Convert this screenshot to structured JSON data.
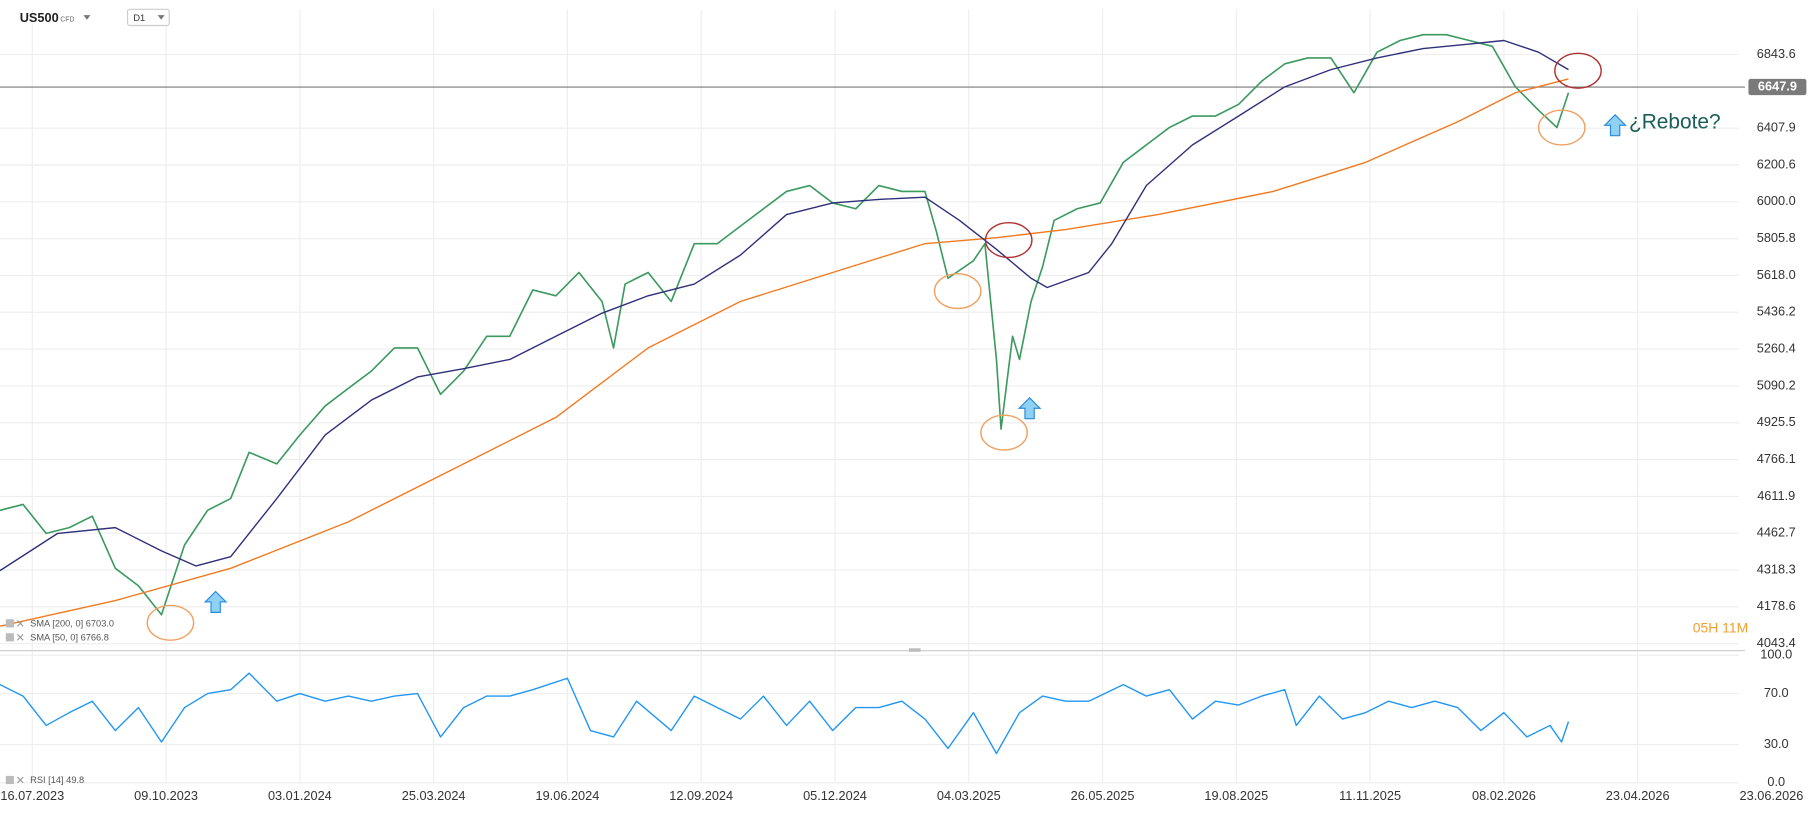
{
  "header": {
    "symbol": "US500",
    "instrument_type": "CFD",
    "timeframe": "D1"
  },
  "chart_data": [
    {
      "type": "line",
      "log_scale": true,
      "grid": true,
      "xlim": [
        -14,
        740
      ],
      "xticks": [
        {
          "value": 0,
          "label": "16.07.2023"
        },
        {
          "value": 58,
          "label": "09.10.2023"
        },
        {
          "value": 116,
          "label": "03.01.2024"
        },
        {
          "value": 174,
          "label": "25.03.2024"
        },
        {
          "value": 232,
          "label": "19.06.2024"
        },
        {
          "value": 290,
          "label": "12.09.2024"
        },
        {
          "value": 348,
          "label": "05.12.2024"
        },
        {
          "value": 406,
          "label": "04.03.2025"
        },
        {
          "value": 464,
          "label": "26.05.2025"
        },
        {
          "value": 522,
          "label": "19.08.2025"
        },
        {
          "value": 580,
          "label": "11.11.2025"
        },
        {
          "value": 638,
          "label": "08.02.2026"
        },
        {
          "value": 696,
          "label": "23.04.2026"
        },
        {
          "value": 754,
          "label": "23.06.2026"
        }
      ],
      "ylim": [
        4022.5,
        7126
      ],
      "yticks": [
        6843.6,
        6407.9,
        6200.6,
        {
          "value": 6000,
          "label": "6000.0"
        },
        5805.8,
        {
          "value": 5618,
          "label": "5618.0"
        },
        5436.2,
        5260.4,
        5090.2,
        4925.5,
        4766.1,
        4611.9,
        4462.7,
        4318.3,
        4178.6,
        4043.4
      ],
      "last_price": 6647.9,
      "countdown": "05H 11M",
      "annotations": [
        "¿Rebote?"
      ],
      "series": [
        {
          "color": "#3c9a5f",
          "x": [
            -14,
            -4,
            6,
            16,
            26,
            36,
            46,
            56,
            66,
            76,
            86,
            94,
            106,
            116,
            127,
            137,
            147,
            157,
            167,
            177,
            187,
            197,
            207,
            217,
            227,
            237,
            247,
            252,
            257,
            267,
            277,
            287,
            297,
            307,
            317,
            327,
            337,
            347,
            357,
            367,
            377,
            387,
            392,
            397,
            408,
            413,
            418,
            420,
            425,
            428,
            433,
            438,
            443,
            453,
            463,
            473,
            483,
            493,
            503,
            513,
            523,
            533,
            543,
            553,
            563,
            573,
            583,
            593,
            603,
            613,
            623,
            633,
            643,
            653,
            661,
            666
          ],
          "values": [
            4555,
            4579,
            4462,
            4485,
            4531,
            4325,
            4258,
            4149,
            4416,
            4555,
            4603,
            4797,
            4748,
            4872,
            5000,
            5079,
            5158,
            5266,
            5266,
            5052,
            5158,
            5321,
            5321,
            5546,
            5517,
            5633,
            5489,
            5266,
            5575,
            5633,
            5489,
            5780,
            5780,
            5871,
            5963,
            6056,
            6088,
            5994,
            5963,
            6088,
            6056,
            6056,
            5841,
            5604,
            5692,
            5780,
            5212,
            4898,
            5321,
            5212,
            5489,
            5662,
            5901,
            5963,
            5994,
            6215,
            6313,
            6412,
            6478,
            6478,
            6546,
            6683,
            6787,
            6823,
            6823,
            6614,
            6858,
            6930,
            6966,
            6966,
            6930,
            6894,
            6649,
            6512,
            6412,
            6614
          ]
        },
        {
          "name": "SMA [200, 0] 6703.0",
          "color": "#f07a20",
          "x": [
            -14,
            36,
            86,
            137,
            187,
            227,
            267,
            307,
            347,
            387,
            418,
            448,
            488,
            538,
            578,
            618,
            643,
            666
          ],
          "values": [
            4107,
            4202,
            4325,
            4508,
            4748,
            4949,
            5266,
            5489,
            5633,
            5780,
            5811,
            5853,
            5932,
            6056,
            6215,
            6445,
            6614,
            6696
          ]
        },
        {
          "name": "SMA [50, 0] 6766.8",
          "color": "#2f2f7a",
          "x": [
            -14,
            11,
            36,
            56,
            71,
            86,
            106,
            127,
            147,
            167,
            187,
            207,
            227,
            247,
            267,
            287,
            307,
            327,
            347,
            367,
            387,
            402,
            418,
            433,
            440,
            458,
            468,
            483,
            503,
            523,
            543,
            563,
            583,
            603,
            623,
            638,
            653,
            666
          ],
          "values": [
            4316,
            4462,
            4485,
            4393,
            4334,
            4370,
            4603,
            4872,
            5026,
            5131,
            5169,
            5212,
            5321,
            5432,
            5517,
            5575,
            5721,
            5932,
            5994,
            6013,
            6025,
            5901,
            5751,
            5604,
            5558,
            5633,
            5780,
            6088,
            6313,
            6478,
            6649,
            6752,
            6823,
            6880,
            6908,
            6930,
            6858,
            6752
          ]
        }
      ]
    },
    {
      "type": "line",
      "grid": true,
      "xlim": [
        -14,
        740
      ],
      "ylim": [
        0,
        100
      ],
      "yticks": [
        {
          "value": 100,
          "label": "100.0"
        },
        {
          "value": 70,
          "label": "70.0"
        },
        {
          "value": 30,
          "label": "30.0"
        },
        {
          "value": 0,
          "label": "0.0"
        }
      ],
      "series": [
        {
          "name": "RSI [14] 49.8",
          "color": "#2196f3",
          "x": [
            -14,
            -4,
            6,
            16,
            26,
            36,
            46,
            56,
            66,
            76,
            86,
            94,
            106,
            116,
            127,
            137,
            147,
            157,
            167,
            177,
            187,
            197,
            207,
            217,
            232,
            242,
            252,
            262,
            277,
            287,
            297,
            307,
            317,
            327,
            337,
            347,
            357,
            367,
            377,
            387,
            397,
            408,
            418,
            428,
            438,
            448,
            458,
            473,
            483,
            493,
            503,
            513,
            523,
            533,
            543,
            548,
            558,
            568,
            578,
            588,
            598,
            608,
            618,
            628,
            638,
            648,
            658,
            663,
            666
          ],
          "values": [
            77,
            68,
            45,
            55,
            64,
            41,
            59,
            32,
            59,
            70,
            73,
            86,
            64,
            70,
            64,
            68,
            64,
            68,
            70,
            36,
            59,
            68,
            68,
            73,
            82,
            41,
            36,
            64,
            41,
            68,
            59,
            50,
            68,
            45,
            64,
            41,
            59,
            59,
            64,
            50,
            27,
            55,
            23,
            55,
            68,
            64,
            64,
            77,
            68,
            73,
            50,
            64,
            61,
            68,
            73,
            45,
            68,
            50,
            55,
            64,
            59,
            64,
            59,
            41,
            55,
            36,
            45,
            32,
            48
          ]
        }
      ]
    }
  ]
}
